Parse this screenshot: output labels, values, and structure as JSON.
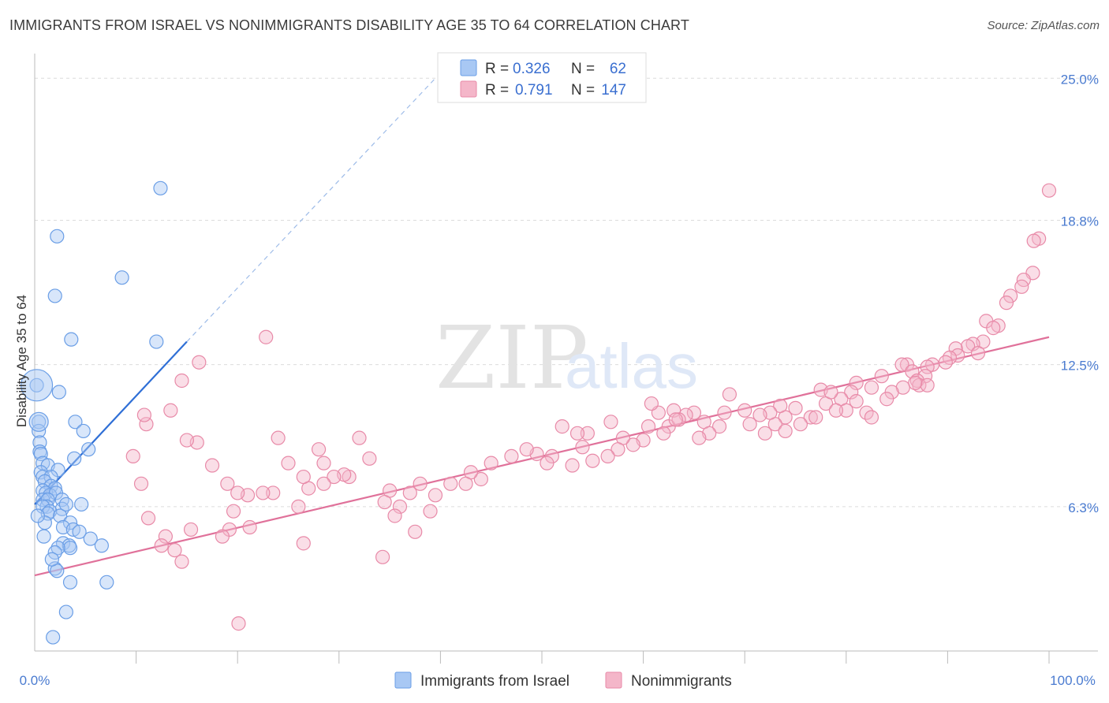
{
  "title": "IMMIGRANTS FROM ISRAEL VS NONIMMIGRANTS DISABILITY AGE 35 TO 64 CORRELATION CHART",
  "source": "Source: ZipAtlas.com",
  "watermark": {
    "zip": "ZIP",
    "atlas": "atlas"
  },
  "legend": {
    "rows": [
      {
        "r_label": "R =",
        "r_value": "0.326",
        "n_label": "N =",
        "n_value": "62",
        "color": "#a8c8f4"
      },
      {
        "r_label": "R =",
        "r_value": "0.791",
        "n_label": "N =",
        "n_value": "147",
        "color": "#f4b6c9"
      }
    ]
  },
  "bottom_legend": {
    "items": [
      {
        "label": "Immigrants from Israel",
        "color": "#a8c8f4"
      },
      {
        "label": "Nonimmigrants",
        "color": "#f4b6c9"
      }
    ]
  },
  "chart_data": {
    "type": "scatter",
    "title": "IMMIGRANTS FROM ISRAEL VS NONIMMIGRANTS DISABILITY AGE 35 TO 64 CORRELATION CHART",
    "xlabel": "",
    "ylabel": "Disability Age 35 to 64",
    "xlim": [
      0,
      100
    ],
    "ylim": [
      0,
      25.8
    ],
    "x_tick_labels": [
      "0.0%",
      "100.0%"
    ],
    "y_ticks": [
      6.3,
      12.5,
      18.8,
      25.0
    ],
    "y_tick_labels": [
      "6.3%",
      "12.5%",
      "18.8%",
      "25.0%"
    ],
    "grid": true,
    "legend_position": "top-center",
    "series": [
      {
        "name": "Immigrants from Israel",
        "color": "#a8c8f4",
        "stroke": "#6a9ee6",
        "trend_color": "#2f6fd6",
        "trend": {
          "x0": 0,
          "y0": 6.4,
          "x1": 15,
          "y1": 13.5,
          "x_dashed_end": 39.5,
          "y_dashed_end": 25.0
        },
        "points": [
          [
            12.4,
            20.2
          ],
          [
            2.2,
            18.1
          ],
          [
            8.6,
            16.3
          ],
          [
            2.0,
            15.5
          ],
          [
            3.6,
            13.6
          ],
          [
            12.0,
            13.5
          ],
          [
            0.2,
            11.6
          ],
          [
            2.4,
            11.3
          ],
          [
            0.4,
            10.0
          ],
          [
            4.0,
            10.0
          ],
          [
            0.4,
            9.6
          ],
          [
            4.8,
            9.6
          ],
          [
            0.5,
            9.1
          ],
          [
            0.5,
            8.7
          ],
          [
            0.6,
            8.6
          ],
          [
            5.3,
            8.8
          ],
          [
            3.9,
            8.4
          ],
          [
            0.8,
            8.2
          ],
          [
            1.3,
            8.1
          ],
          [
            2.3,
            7.9
          ],
          [
            0.6,
            7.8
          ],
          [
            0.8,
            7.6
          ],
          [
            1.6,
            7.6
          ],
          [
            1.0,
            7.4
          ],
          [
            1.6,
            7.2
          ],
          [
            2.0,
            7.1
          ],
          [
            0.8,
            7.0
          ],
          [
            1.1,
            6.9
          ],
          [
            1.5,
            6.8
          ],
          [
            2.1,
            6.9
          ],
          [
            0.8,
            6.6
          ],
          [
            1.3,
            6.6
          ],
          [
            2.7,
            6.6
          ],
          [
            1.2,
            6.3
          ],
          [
            2.7,
            6.2
          ],
          [
            4.6,
            6.4
          ],
          [
            0.8,
            6.3
          ],
          [
            1.5,
            6.1
          ],
          [
            1.3,
            6.0
          ],
          [
            2.5,
            5.9
          ],
          [
            3.5,
            5.6
          ],
          [
            2.8,
            5.4
          ],
          [
            3.8,
            5.3
          ],
          [
            5.5,
            4.9
          ],
          [
            2.8,
            4.7
          ],
          [
            3.4,
            4.6
          ],
          [
            3.5,
            4.5
          ],
          [
            6.6,
            4.6
          ],
          [
            2.3,
            4.5
          ],
          [
            2.0,
            4.3
          ],
          [
            2.0,
            3.6
          ],
          [
            2.2,
            3.5
          ],
          [
            3.5,
            3.0
          ],
          [
            7.1,
            3.0
          ],
          [
            3.1,
            1.7
          ],
          [
            1.8,
            0.6
          ],
          [
            1.0,
            5.6
          ],
          [
            4.4,
            5.2
          ],
          [
            0.3,
            5.9
          ],
          [
            3.1,
            6.4
          ],
          [
            0.9,
            5.0
          ],
          [
            1.7,
            4.0
          ]
        ]
      },
      {
        "name": "Nonimmigrants",
        "color": "#f4b6c9",
        "stroke": "#e88aa8",
        "trend_color": "#e0719a",
        "trend": {
          "x0": 0,
          "y0": 3.3,
          "x1": 100,
          "y1": 13.7
        },
        "points": [
          [
            100.0,
            20.1
          ],
          [
            99.0,
            18.0
          ],
          [
            98.5,
            17.9
          ],
          [
            98.4,
            16.5
          ],
          [
            97.5,
            16.2
          ],
          [
            97.3,
            15.9
          ],
          [
            96.2,
            15.5
          ],
          [
            95.8,
            15.2
          ],
          [
            93.8,
            14.4
          ],
          [
            95.0,
            14.2
          ],
          [
            94.5,
            14.1
          ],
          [
            93.5,
            13.5
          ],
          [
            92.5,
            13.4
          ],
          [
            92.0,
            13.3
          ],
          [
            93.0,
            13.0
          ],
          [
            90.8,
            13.2
          ],
          [
            91.0,
            12.9
          ],
          [
            90.2,
            12.8
          ],
          [
            89.8,
            12.6
          ],
          [
            88.5,
            12.5
          ],
          [
            88.0,
            12.4
          ],
          [
            86.0,
            12.5
          ],
          [
            85.5,
            12.5
          ],
          [
            86.5,
            12.2
          ],
          [
            87.8,
            12.0
          ],
          [
            87.0,
            11.8
          ],
          [
            87.2,
            11.6
          ],
          [
            88.0,
            11.6
          ],
          [
            86.8,
            11.7
          ],
          [
            85.6,
            11.5
          ],
          [
            84.5,
            11.3
          ],
          [
            84.0,
            11.0
          ],
          [
            83.5,
            12.0
          ],
          [
            82.5,
            11.5
          ],
          [
            81.0,
            11.7
          ],
          [
            80.5,
            11.3
          ],
          [
            81.0,
            10.9
          ],
          [
            79.5,
            11.0
          ],
          [
            80.0,
            10.5
          ],
          [
            82.0,
            10.4
          ],
          [
            82.5,
            10.2
          ],
          [
            77.5,
            11.4
          ],
          [
            78.0,
            10.8
          ],
          [
            78.5,
            11.3
          ],
          [
            79.0,
            10.5
          ],
          [
            76.5,
            10.2
          ],
          [
            75.0,
            10.6
          ],
          [
            74.0,
            10.2
          ],
          [
            73.0,
            9.9
          ],
          [
            75.5,
            9.9
          ],
          [
            77.0,
            10.2
          ],
          [
            73.5,
            10.7
          ],
          [
            72.5,
            10.4
          ],
          [
            71.5,
            10.3
          ],
          [
            70.0,
            10.5
          ],
          [
            70.5,
            9.9
          ],
          [
            72.0,
            9.5
          ],
          [
            74.0,
            9.6
          ],
          [
            68.5,
            11.2
          ],
          [
            68.0,
            10.4
          ],
          [
            67.5,
            9.8
          ],
          [
            66.0,
            10.0
          ],
          [
            65.0,
            10.4
          ],
          [
            66.5,
            9.5
          ],
          [
            65.5,
            9.3
          ],
          [
            64.2,
            10.3
          ],
          [
            63.0,
            10.5
          ],
          [
            62.5,
            9.8
          ],
          [
            61.5,
            10.4
          ],
          [
            62.0,
            9.5
          ],
          [
            60.5,
            9.8
          ],
          [
            60.0,
            9.2
          ],
          [
            59.0,
            9.0
          ],
          [
            58.0,
            9.3
          ],
          [
            56.8,
            10.0
          ],
          [
            60.8,
            10.8
          ],
          [
            63.5,
            10.1
          ],
          [
            63.2,
            10.1
          ],
          [
            57.5,
            8.8
          ],
          [
            56.5,
            8.5
          ],
          [
            55.0,
            8.3
          ],
          [
            54.5,
            9.5
          ],
          [
            53.5,
            9.5
          ],
          [
            54.0,
            8.9
          ],
          [
            52.0,
            9.8
          ],
          [
            53.0,
            8.1
          ],
          [
            51.0,
            8.5
          ],
          [
            50.5,
            8.2
          ],
          [
            49.5,
            8.6
          ],
          [
            48.5,
            8.8
          ],
          [
            47.0,
            8.5
          ],
          [
            45.0,
            8.2
          ],
          [
            44.0,
            7.5
          ],
          [
            43.0,
            7.8
          ],
          [
            42.5,
            7.3
          ],
          [
            41.0,
            7.3
          ],
          [
            39.5,
            6.8
          ],
          [
            39.0,
            6.1
          ],
          [
            38.0,
            7.3
          ],
          [
            37.0,
            6.9
          ],
          [
            36.0,
            6.3
          ],
          [
            35.0,
            7.0
          ],
          [
            33.0,
            8.4
          ],
          [
            32.0,
            9.3
          ],
          [
            31.0,
            7.6
          ],
          [
            30.5,
            7.7
          ],
          [
            29.5,
            7.6
          ],
          [
            28.5,
            8.2
          ],
          [
            28.0,
            8.8
          ],
          [
            27.0,
            7.1
          ],
          [
            26.5,
            7.6
          ],
          [
            25.0,
            8.2
          ],
          [
            24.0,
            9.3
          ],
          [
            23.5,
            6.9
          ],
          [
            22.5,
            6.9
          ],
          [
            21.0,
            6.8
          ],
          [
            20.0,
            6.9
          ],
          [
            19.0,
            7.3
          ],
          [
            17.5,
            8.1
          ],
          [
            16.0,
            9.1
          ],
          [
            15.0,
            9.2
          ],
          [
            34.5,
            6.5
          ],
          [
            26.0,
            6.3
          ],
          [
            35.5,
            5.9
          ],
          [
            37.5,
            5.2
          ],
          [
            28.5,
            7.3
          ],
          [
            22.8,
            13.7
          ],
          [
            16.2,
            12.6
          ],
          [
            14.5,
            11.8
          ],
          [
            13.4,
            10.5
          ],
          [
            11.0,
            9.9
          ],
          [
            10.8,
            10.3
          ],
          [
            9.7,
            8.5
          ],
          [
            10.5,
            7.3
          ],
          [
            11.2,
            5.8
          ],
          [
            12.9,
            5.0
          ],
          [
            12.5,
            4.6
          ],
          [
            13.8,
            4.4
          ],
          [
            14.5,
            3.9
          ],
          [
            19.2,
            5.3
          ],
          [
            15.4,
            5.3
          ],
          [
            19.6,
            6.1
          ],
          [
            18.5,
            5.0
          ],
          [
            21.2,
            5.4
          ],
          [
            26.5,
            4.7
          ],
          [
            20.1,
            1.2
          ],
          [
            34.3,
            4.1
          ]
        ]
      }
    ]
  }
}
